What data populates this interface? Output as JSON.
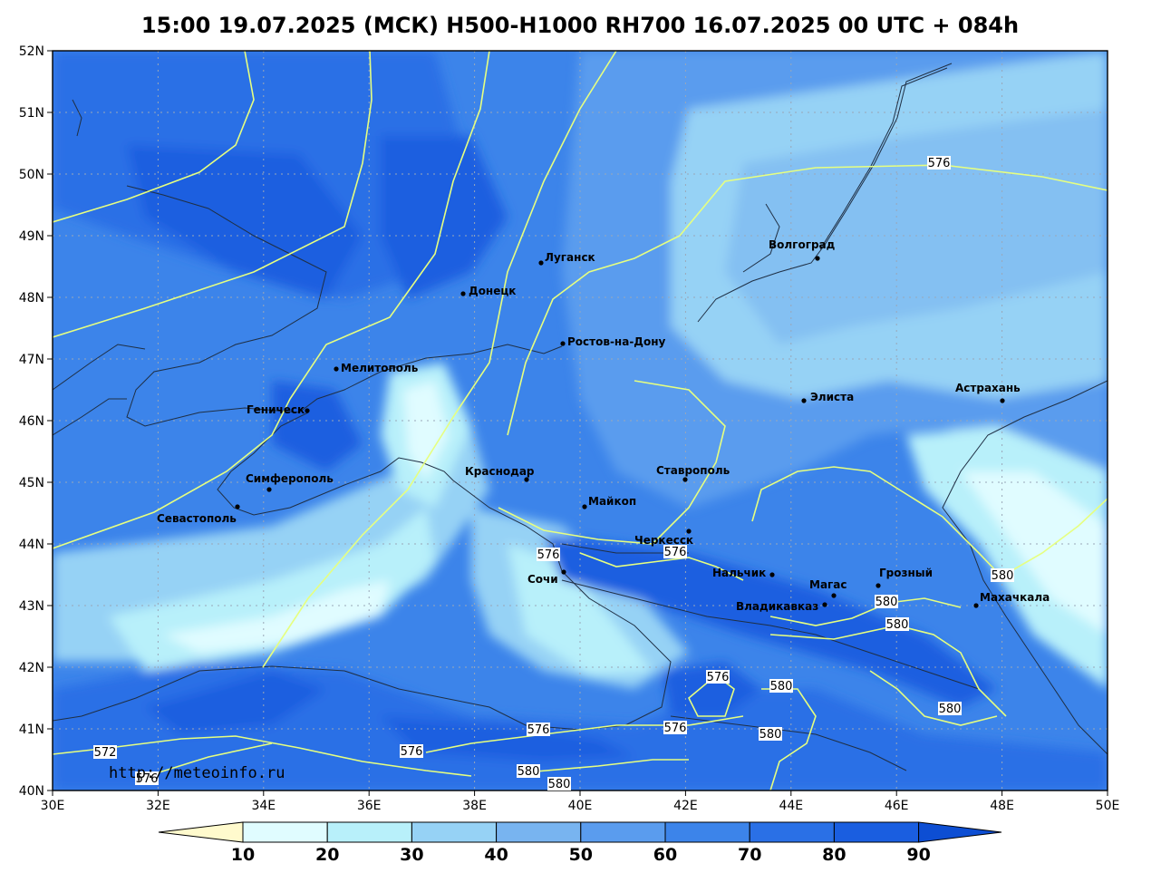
{
  "title": "15:00 19.07.2025 (МСК) H500-H1000 RH700 16.07.2025 00 UTC + 084h",
  "watermark": "http://meteoinfo.ru",
  "lat_labels": [
    "52N",
    "51N",
    "50N",
    "49N",
    "48N",
    "47N",
    "46N",
    "45N",
    "44N",
    "43N",
    "42N",
    "41N",
    "40N"
  ],
  "lon_labels": [
    "30E",
    "32E",
    "34E",
    "36E",
    "38E",
    "40E",
    "42E",
    "44E",
    "46E",
    "48E",
    "50E"
  ],
  "colorbar": {
    "ticks": [
      "10",
      "20",
      "30",
      "40",
      "50",
      "60",
      "70",
      "80",
      "90"
    ],
    "colors": [
      "#fffacd",
      "#e0fcff",
      "#b8f0fa",
      "#96d2f5",
      "#78b4f0",
      "#5a9cee",
      "#3c84ea",
      "#2a70e6",
      "#1a5ee0",
      "#0d4ed3"
    ]
  },
  "cities": [
    {
      "name": "Луганск"
    },
    {
      "name": "Волгоград"
    },
    {
      "name": "Донецк"
    },
    {
      "name": "Ростов-на-Дону"
    },
    {
      "name": "Мелитополь"
    },
    {
      "name": "Элиста"
    },
    {
      "name": "Астрахань"
    },
    {
      "name": "Геническ"
    },
    {
      "name": "Краснодар"
    },
    {
      "name": "Ставрополь"
    },
    {
      "name": "Симферополь"
    },
    {
      "name": "Майкоп"
    },
    {
      "name": "Севастополь"
    },
    {
      "name": "Черкесск"
    },
    {
      "name": "Нальчик"
    },
    {
      "name": "Грозный"
    },
    {
      "name": "Сочи"
    },
    {
      "name": "Магас"
    },
    {
      "name": "Владикавказ"
    },
    {
      "name": "Махачкала"
    }
  ],
  "contour_labels": [
    "576",
    "576",
    "576",
    "580",
    "580",
    "580",
    "576",
    "580",
    "580",
    "576",
    "580",
    "572",
    "576",
    "576",
    "580",
    "580",
    "576"
  ]
}
